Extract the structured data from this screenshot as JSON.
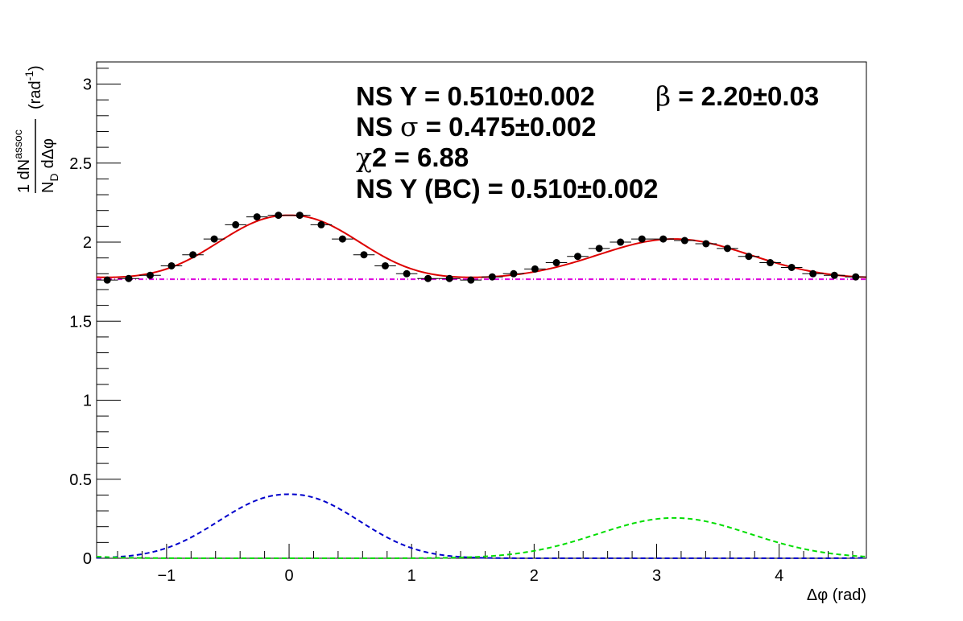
{
  "chart_data": {
    "type": "scatter",
    "xlabel": "Δφ (rad)",
    "ylabel": {
      "numerator": "1 dN",
      "numerator_sup": "assoc",
      "denominator": "N",
      "denominator_sub": "D",
      "denominator_tail": "dΔφ",
      "unit": "(rad",
      "unit_sup": "-1",
      "unit_close": ")"
    },
    "xlim": [
      -1.571,
      4.712
    ],
    "ylim": [
      0,
      3.14
    ],
    "x_ticks": [
      {
        "v": -1,
        "label": "−1"
      },
      {
        "v": 0,
        "label": "0"
      },
      {
        "v": 1,
        "label": "1"
      },
      {
        "v": 2,
        "label": "2"
      },
      {
        "v": 3,
        "label": "3"
      },
      {
        "v": 4,
        "label": "4"
      }
    ],
    "y_ticks": [
      {
        "v": 0,
        "label": "0"
      },
      {
        "v": 0.5,
        "label": "0.5"
      },
      {
        "v": 1,
        "label": "1"
      },
      {
        "v": 1.5,
        "label": "1.5"
      },
      {
        "v": 2,
        "label": "2"
      },
      {
        "v": 2.5,
        "label": "2.5"
      },
      {
        "v": 3,
        "label": "3"
      }
    ],
    "grid": false,
    "data_points": {
      "x": [
        -1.484,
        -1.309,
        -1.134,
        -0.96,
        -0.785,
        -0.611,
        -0.436,
        -0.262,
        -0.087,
        0.087,
        0.262,
        0.436,
        0.611,
        0.785,
        0.96,
        1.134,
        1.309,
        1.484,
        1.658,
        1.833,
        2.007,
        2.182,
        2.356,
        2.531,
        2.705,
        2.88,
        3.054,
        3.229,
        3.403,
        3.578,
        3.752,
        3.927,
        4.102,
        4.276,
        4.451,
        4.625
      ],
      "y": [
        1.76,
        1.77,
        1.79,
        1.85,
        1.92,
        2.02,
        2.11,
        2.16,
        2.17,
        2.17,
        2.11,
        2.02,
        1.92,
        1.85,
        1.8,
        1.77,
        1.77,
        1.76,
        1.78,
        1.8,
        1.83,
        1.87,
        1.91,
        1.96,
        2.0,
        2.02,
        2.02,
        2.01,
        1.99,
        1.96,
        1.91,
        1.87,
        1.84,
        1.8,
        1.79,
        1.78
      ],
      "x_error": 0.0873,
      "color": "#000000"
    },
    "fit": {
      "baseline": 1.765,
      "ns_amplitude": 0.405,
      "ns_sigma": 0.475,
      "ns_beta": 2.2,
      "as_amplitude": 0.255,
      "as_sigma": 0.62,
      "as_mean": 3.1416
    },
    "series_colors": {
      "total_fit": "#dd0000",
      "baseline": "#dd00dd",
      "near_side": "#0000cc",
      "away_side": "#00dd00"
    },
    "annotations": {
      "line1_a": "NS Y = 0.510±0.002",
      "line1_b_symbol": "β",
      "line1_b": " = 2.20±0.03",
      "line2_prefix": "NS ",
      "line2_symbol": "σ",
      "line2": " = 0.475±0.002",
      "line3_symbol": "χ",
      "line3": "2 = 6.88",
      "line4": "NS Y (BC) = 0.510±0.002"
    }
  }
}
